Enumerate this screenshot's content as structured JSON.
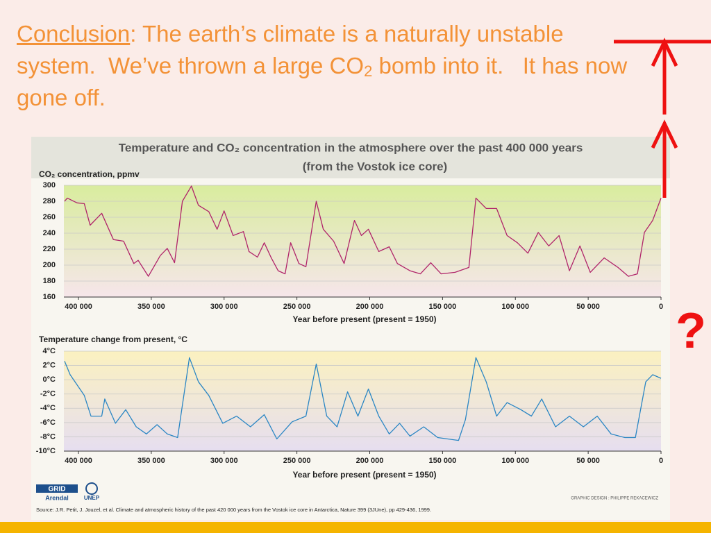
{
  "slide": {
    "heading": {
      "lead": "Conclusion",
      "text": ": The earth’s climate is a naturally unstable system.  We’ve thrown a large CO",
      "sub": "2",
      "tail": " bomb into it.   It has now gone off."
    },
    "question": "?",
    "logo_grid": "GRID",
    "logo_arendal": "Arendal",
    "logo_unep": "UNEP",
    "credit": "GRAPHIC DESIGN : PHILIPPE REKACEWICZ",
    "source": "Source: J.R. Petit, J. Jouzel, et al. Climate and atmospheric history of the past 420 000 years from the Vostok ice core in Antarctica, Nature 399 (3JUne), pp 429-436, 1999."
  },
  "chart_data": [
    {
      "type": "line",
      "title": "Temperature and CO₂ concentration in the atmosphere over the past 400 000 years",
      "subtitle": "(from the Vostok ice core)",
      "ylabel": "CO₂ concentration, ppmv",
      "xlabel": "Year before present (present = 1950)",
      "color": "#b0246a",
      "x": [
        409500,
        407600,
        401000,
        396000,
        392000,
        384000,
        376000,
        369000,
        362000,
        359000,
        352000,
        343800,
        339000,
        334000,
        328600,
        322400,
        317600,
        310500,
        304800,
        300000,
        293800,
        286700,
        282900,
        277100,
        272400,
        267600,
        262900,
        258100,
        254300,
        248600,
        243800,
        236700,
        231900,
        224800,
        217600,
        210500,
        205700,
        200900,
        193800,
        186600,
        181000,
        172400,
        165200,
        158100,
        151000,
        141400,
        131900,
        127100,
        120000,
        112900,
        105700,
        98600,
        91400,
        84300,
        77100,
        70000,
        62900,
        55700,
        48600,
        39000,
        29500,
        22400,
        16200,
        11400,
        5700,
        0
      ],
      "values": [
        280,
        284,
        278,
        277,
        250,
        265,
        232,
        230,
        202,
        206,
        186,
        212,
        221,
        203,
        280,
        299,
        275,
        267,
        245,
        268,
        237,
        242,
        217,
        210,
        228,
        209,
        193,
        189,
        228,
        202,
        198,
        280,
        245,
        230,
        202,
        256,
        237,
        245,
        217,
        223,
        202,
        193,
        189,
        203,
        189,
        191,
        197,
        284,
        271,
        271,
        237,
        228,
        215,
        241,
        224,
        237,
        193,
        224,
        191,
        209,
        197,
        186,
        189,
        241,
        256,
        284
      ],
      "xlim": [
        410000,
        0
      ],
      "xticks": [
        {
          "value": 400000,
          "label": "400 000"
        },
        {
          "value": 350000,
          "label": "350 000"
        },
        {
          "value": 300000,
          "label": "300 000"
        },
        {
          "value": 250000,
          "label": "250 000"
        },
        {
          "value": 200000,
          "label": "200 000"
        },
        {
          "value": 150000,
          "label": "150 000"
        },
        {
          "value": 100000,
          "label": "100 000"
        },
        {
          "value": 50000,
          "label": "50 000"
        },
        0
      ],
      "ylim": [
        160,
        300
      ],
      "yticks": [
        160,
        180,
        200,
        220,
        240,
        260,
        280,
        300
      ],
      "grid": true
    },
    {
      "type": "line",
      "ylabel": "Temperature change from present, °C",
      "xlabel": "Year before present (present = 1950)",
      "color": "#2a86c4",
      "x": [
        409500,
        405700,
        396000,
        391400,
        384000,
        381900,
        374600,
        367500,
        360300,
        353300,
        346000,
        339000,
        331900,
        323800,
        317600,
        310500,
        300900,
        291400,
        281900,
        272400,
        263800,
        253300,
        243800,
        236700,
        229500,
        222400,
        215200,
        208100,
        200900,
        193800,
        186600,
        179500,
        172400,
        162900,
        153300,
        139000,
        134300,
        127100,
        120000,
        112900,
        105700,
        96200,
        89000,
        81900,
        72400,
        62900,
        53300,
        43800,
        34300,
        24800,
        17600,
        10500,
        5700,
        0
      ],
      "values": [
        2.6,
        0.7,
        -2.2,
        -5.1,
        -5.1,
        -2.7,
        -6.1,
        -4.2,
        -6.6,
        -7.6,
        -6.3,
        -7.6,
        -8.1,
        3.1,
        -0.3,
        -2.2,
        -6.1,
        -5.1,
        -6.6,
        -4.9,
        -8.3,
        -5.9,
        -5.1,
        2.2,
        -5.1,
        -6.6,
        -1.7,
        -5.1,
        -1.3,
        -5.1,
        -7.6,
        -6.1,
        -7.9,
        -6.6,
        -8.1,
        -8.5,
        -5.6,
        3.1,
        -0.3,
        -5.1,
        -3.2,
        -4.2,
        -5.1,
        -2.7,
        -6.6,
        -5.1,
        -6.6,
        -5.1,
        -7.6,
        -8.1,
        -8.1,
        -0.3,
        0.7,
        0.2
      ],
      "xlim": [
        410000,
        0
      ],
      "xticks": [
        {
          "value": 400000,
          "label": "400 000"
        },
        {
          "value": 350000,
          "label": "350 000"
        },
        {
          "value": 300000,
          "label": "300 000"
        },
        {
          "value": 250000,
          "label": "250 000"
        },
        {
          "value": 200000,
          "label": "200 000"
        },
        {
          "value": 150000,
          "label": "150 000"
        },
        {
          "value": 100000,
          "label": "100 000"
        },
        {
          "value": 50000,
          "label": "50 000"
        },
        0
      ],
      "ylim": [
        -10,
        4
      ],
      "yticks": [
        {
          "value": -10,
          "label": "-10°C"
        },
        {
          "value": -8,
          "label": "-8°C"
        },
        {
          "value": -6,
          "label": "-6°C"
        },
        {
          "value": -4,
          "label": "-4°C"
        },
        {
          "value": -2,
          "label": "-2°C"
        },
        {
          "value": 0,
          "label": "0°C"
        },
        {
          "value": 2,
          "label": "2°C"
        },
        {
          "value": 4,
          "label": "4°C"
        }
      ],
      "grid": true
    }
  ]
}
